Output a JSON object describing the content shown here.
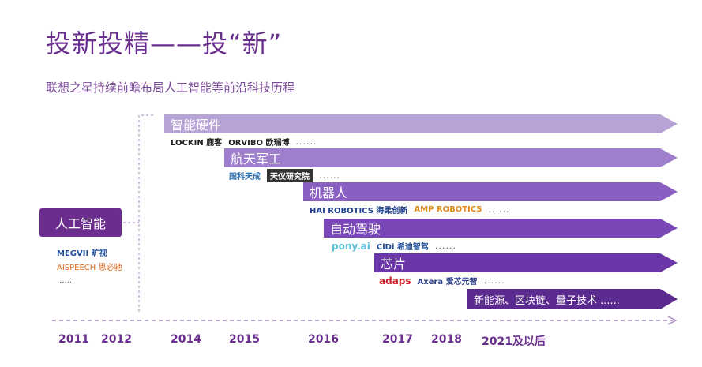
{
  "title": "投新投精——投“新”",
  "subtitle": "联想之星持续前瞻布局人工智能等前沿科技历程",
  "root": {
    "label": "人工智能"
  },
  "root_logos": [
    "MEGVII 旷视",
    "AISPEECH 思必驰",
    "......"
  ],
  "rows": [
    {
      "label": "智能硬件",
      "logos": [
        "LOCKIN 鹿客",
        "ORVIBO 欧瑞博"
      ],
      "dots": "......"
    },
    {
      "label": "航天军工",
      "logos": [
        "国科天成",
        "天仪研究院"
      ],
      "dots": "......"
    },
    {
      "label": "机器人",
      "logos": [
        "HAI ROBOTICS 海柔创新",
        "AMP ROBOTICS"
      ],
      "dots": "......"
    },
    {
      "label": "自动驾驶",
      "logos": [
        "pony.ai",
        "CiDi 希迪智驾"
      ],
      "dots": "......"
    },
    {
      "label": "芯片",
      "logos": [
        "adaps",
        "Axera 爱芯元智"
      ],
      "dots": "......"
    },
    {
      "label": "新能源、区块链、量子技术 ......"
    }
  ],
  "years": [
    "2011",
    "2012",
    "2014",
    "2015",
    "2016",
    "2017",
    "2018",
    "2021及以后"
  ],
  "colors": {
    "accent": "#6b2d8e",
    "row_colors": [
      "#b7a3d6",
      "#9d7fcc",
      "#8a5fc2",
      "#7a47b6",
      "#6a36a8",
      "#5a2a8e"
    ]
  }
}
